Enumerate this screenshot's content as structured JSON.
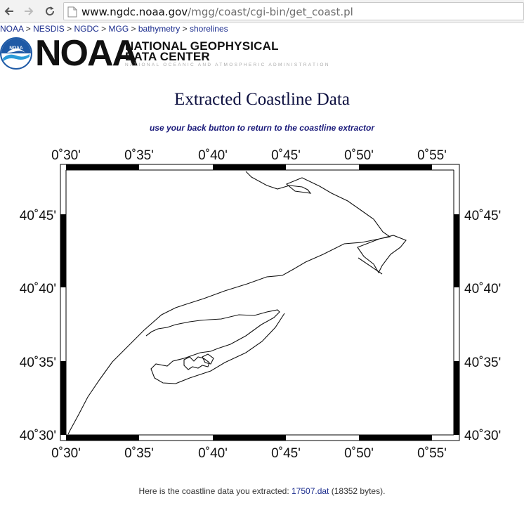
{
  "browser": {
    "url_host": "www.ngdc.noaa.gov",
    "url_path": "/mgg/coast/cgi-bin/get_coast.pl"
  },
  "breadcrumb": [
    {
      "label": "NOAA"
    },
    {
      "label": "NESDIS"
    },
    {
      "label": "NGDC"
    },
    {
      "label": "MGG"
    },
    {
      "label": "bathymetry"
    },
    {
      "label": "shorelines"
    }
  ],
  "breadcrumb_sep": ">",
  "header": {
    "logo_badge_text": "NOAA",
    "org_word": "NOAA",
    "center_title_line1": "NATIONAL GEOPHYSICAL",
    "center_title_line2": "DATA CENTER",
    "center_subtitle": "NATIONAL OCEANIC AND ATMOSPHERIC ADMINISTRATION"
  },
  "main": {
    "title": "Extracted Coastline Data",
    "subtitle": "use your back button to return to the coastline extractor"
  },
  "map": {
    "x_ticks": [
      "0˚30'",
      "0˚35'",
      "0˚40'",
      "0˚45'",
      "0˚50'",
      "0˚55'"
    ],
    "y_ticks": [
      "40˚45'",
      "40˚40'",
      "40˚35'",
      "40˚30'"
    ]
  },
  "footer": {
    "prefix": "Here is the coastline data you extracted: ",
    "file_name": "17507.dat",
    "suffix": " (18352 bytes)."
  },
  "colors": {
    "link": "#1b2d8e",
    "title": "#0d1040",
    "subtitle": "#1a1a7a",
    "noaa_blue": "#1f5aa6",
    "noaa_light": "#2b9bd8"
  }
}
